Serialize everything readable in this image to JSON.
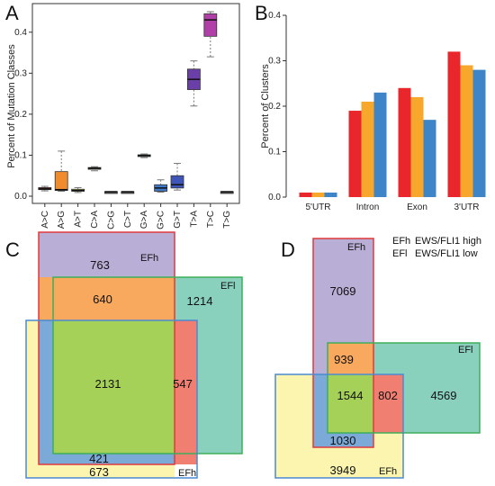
{
  "panels": {
    "A": {
      "label": "A",
      "chart_data": {
        "type": "box",
        "ylabel": "Percent of Mutation Classes",
        "ylim": [
          0,
          0.45
        ],
        "yticks": [
          "0.0",
          "0.1",
          "0.2",
          "0.3",
          "0.4"
        ],
        "categories": [
          "A>C",
          "A>G",
          "A>T",
          "C>A",
          "C>G",
          "C>T",
          "G>A",
          "G>C",
          "G>T",
          "T>A",
          "T>C",
          "T>G"
        ],
        "boxes": [
          {
            "min": 0.013,
            "q1": 0.016,
            "median": 0.018,
            "q3": 0.021,
            "max": 0.024,
            "color": "#d93a3a"
          },
          {
            "min": 0.012,
            "q1": 0.014,
            "median": 0.016,
            "q3": 0.06,
            "max": 0.11,
            "color": "#f08c2e"
          },
          {
            "min": 0.009,
            "q1": 0.012,
            "median": 0.014,
            "q3": 0.017,
            "max": 0.021,
            "color": "#e4e35a"
          },
          {
            "min": 0.062,
            "q1": 0.066,
            "median": 0.068,
            "q3": 0.07,
            "max": 0.072,
            "color": "#90c84a"
          },
          {
            "min": 0.011,
            "q1": 0.011,
            "median": 0.011,
            "q3": 0.011,
            "max": 0.011,
            "color": "#555555"
          },
          {
            "min": 0.011,
            "q1": 0.011,
            "median": 0.011,
            "q3": 0.011,
            "max": 0.011,
            "color": "#555555"
          },
          {
            "min": 0.094,
            "q1": 0.097,
            "median": 0.099,
            "q3": 0.101,
            "max": 0.103,
            "color": "#3ec8c0"
          },
          {
            "min": 0.01,
            "q1": 0.012,
            "median": 0.02,
            "q3": 0.028,
            "max": 0.04,
            "color": "#3f79c8"
          },
          {
            "min": 0.015,
            "q1": 0.02,
            "median": 0.028,
            "q3": 0.05,
            "max": 0.08,
            "color": "#3f56b8"
          },
          {
            "min": 0.22,
            "q1": 0.26,
            "median": 0.285,
            "q3": 0.31,
            "max": 0.33,
            "color": "#6a3fa8"
          },
          {
            "min": 0.34,
            "q1": 0.39,
            "median": 0.43,
            "q3": 0.445,
            "max": 0.45,
            "color": "#b03fa8"
          },
          {
            "min": 0.011,
            "q1": 0.011,
            "median": 0.011,
            "q3": 0.011,
            "max": 0.011,
            "color": "#555555"
          }
        ]
      }
    },
    "B": {
      "label": "B",
      "chart_data": {
        "type": "bar",
        "ylabel": "Percent of Clusters",
        "ylim": [
          0,
          0.4
        ],
        "yticks": [
          "0.0",
          "0.1",
          "0.2",
          "0.3",
          "0.4"
        ],
        "categories": [
          "5'UTR",
          "Intron",
          "Exon",
          "3'UTR"
        ],
        "series": [
          {
            "values": [
              0.01,
              0.19,
              0.24,
              0.32
            ],
            "color": "#e8262b"
          },
          {
            "values": [
              0.01,
              0.21,
              0.22,
              0.29
            ],
            "color": "#f7a72b"
          },
          {
            "values": [
              0.01,
              0.23,
              0.17,
              0.28
            ],
            "color": "#3d85c6"
          }
        ]
      }
    },
    "C": {
      "label": "C",
      "regions": {
        "efh_only": "763",
        "efh_efi": "640",
        "efi_only": "1214",
        "all_three": "2131",
        "efi_efh3": "547",
        "efh_efh3": "421",
        "efh3_only": "673"
      },
      "set_labels": {
        "efh": "EFh",
        "efi": "EFl",
        "efh3": "EFh"
      }
    },
    "D": {
      "label": "D",
      "regions": {
        "efh_only": "7069",
        "efh_efi": "939",
        "all_three": "1544",
        "efi_efh3": "802",
        "efi_only": "4569",
        "efh_efh3": "1030",
        "efh3_only": "3949"
      },
      "set_labels": {
        "efh": "EFh",
        "efi": "EFl",
        "efh3": "EFh"
      },
      "legend": [
        {
          "key": "EFh",
          "desc": "EWS/FLI1 high"
        },
        {
          "key": "EFl",
          "desc": "EWS/FLI1 low"
        }
      ]
    }
  },
  "colors": {
    "purple": "#b9aed6",
    "teal": "#89d1bd",
    "yellow": "#fbf5b0",
    "orange": "#f9a95e",
    "green": "#a6d158",
    "red": "#f07e71",
    "blue": "#7ba9d8"
  }
}
